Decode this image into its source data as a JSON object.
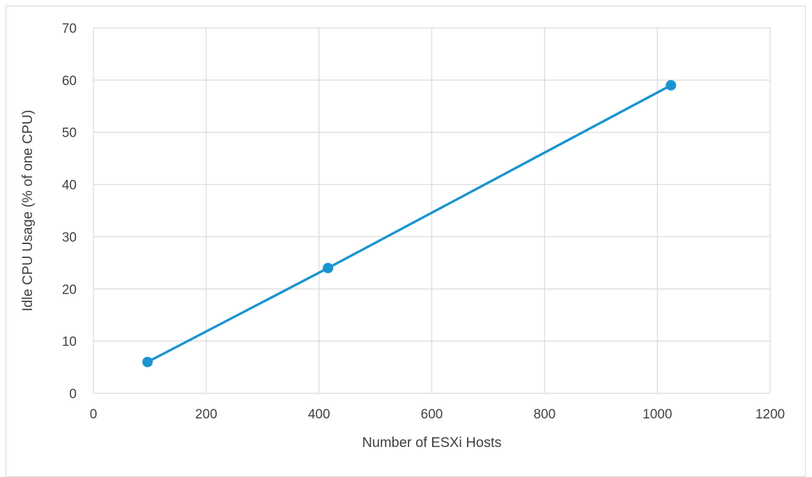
{
  "chart_data": {
    "type": "line",
    "title": "",
    "xlabel": "Number of ESXi Hosts",
    "ylabel": "Idle CPU Usage (% of one CPU)",
    "xlim": [
      0,
      1200
    ],
    "ylim": [
      0,
      70
    ],
    "xticks": [
      0,
      200,
      400,
      600,
      800,
      1000,
      1200
    ],
    "yticks": [
      0,
      10,
      20,
      30,
      40,
      50,
      60,
      70
    ],
    "grid": true,
    "legend": "none",
    "series": [
      {
        "x": [
          96,
          416,
          1024
        ],
        "y": [
          6,
          24,
          59
        ],
        "color": "#1a94d0",
        "marker": "circle"
      }
    ]
  }
}
